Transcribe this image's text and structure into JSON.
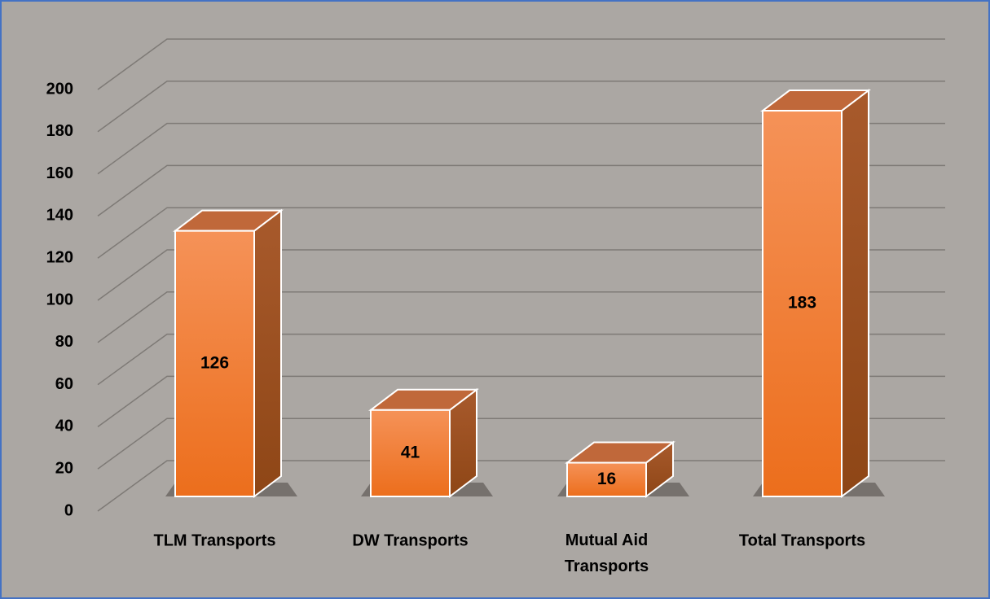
{
  "chart_data": {
    "type": "bar3d",
    "categories": [
      "TLM Transports",
      "DW Transports",
      "Mutual Aid Transports",
      "Total Transports"
    ],
    "values": [
      126,
      41,
      16,
      183
    ],
    "color": "#f07a2c",
    "ylim": [
      0,
      200
    ],
    "yticks": [
      0,
      20,
      40,
      60,
      80,
      100,
      120,
      140,
      160,
      180,
      200
    ],
    "grid": true
  }
}
